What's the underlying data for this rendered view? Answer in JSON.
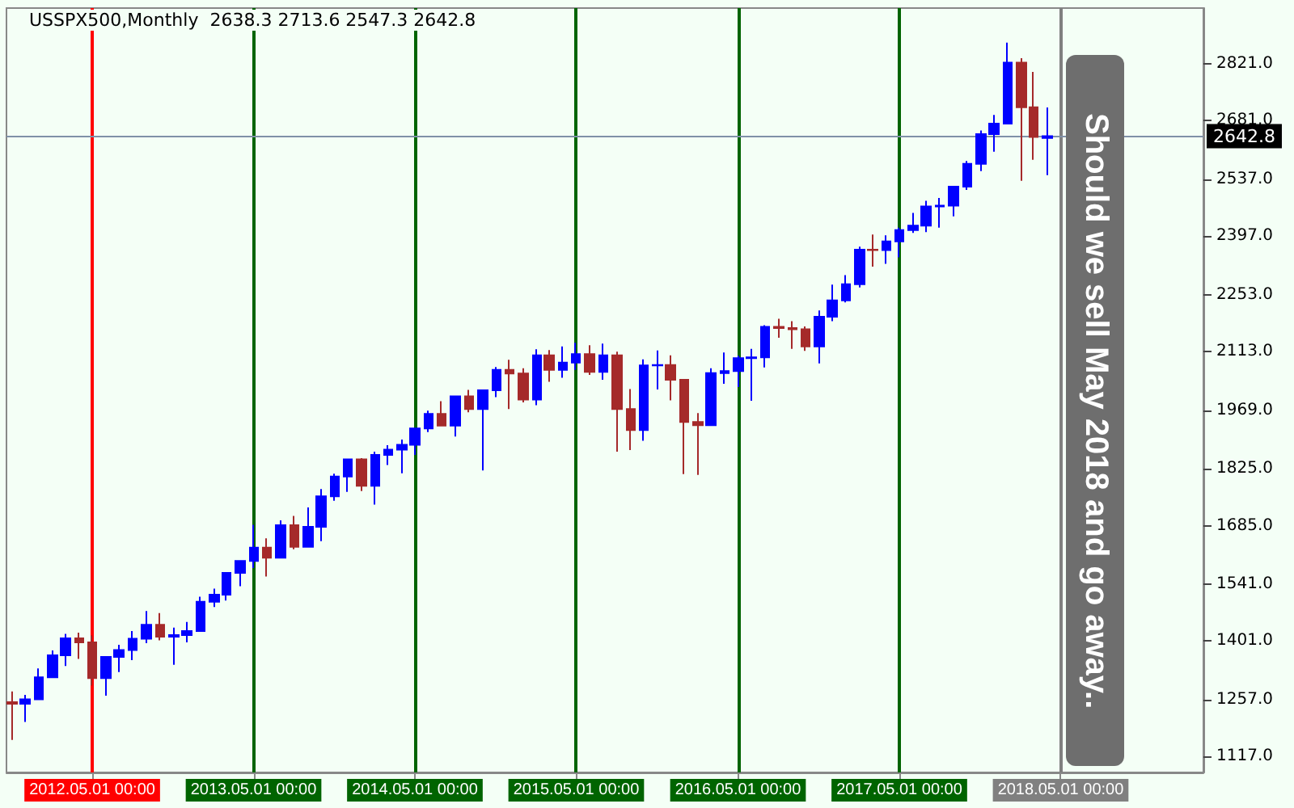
{
  "chart_data": {
    "type": "candlestick",
    "title": "USSPX500,Monthly  2638.3 2713.6 2547.3 2642.8",
    "x": [
      "2011-11",
      "2011-12",
      "2012-01",
      "2012-02",
      "2012-03",
      "2012-04",
      "2012-05",
      "2012-06",
      "2012-07",
      "2012-08",
      "2012-09",
      "2012-10",
      "2012-11",
      "2012-12",
      "2013-01",
      "2013-02",
      "2013-03",
      "2013-04",
      "2013-05",
      "2013-06",
      "2013-07",
      "2013-08",
      "2013-09",
      "2013-10",
      "2013-11",
      "2013-12",
      "2014-01",
      "2014-02",
      "2014-03",
      "2014-04",
      "2014-05",
      "2014-06",
      "2014-07",
      "2014-08",
      "2014-09",
      "2014-10",
      "2014-11",
      "2014-12",
      "2015-01",
      "2015-02",
      "2015-03",
      "2015-04",
      "2015-05",
      "2015-06",
      "2015-07",
      "2015-08",
      "2015-09",
      "2015-10",
      "2015-11",
      "2015-12",
      "2016-01",
      "2016-02",
      "2016-03",
      "2016-04",
      "2016-05",
      "2016-06",
      "2016-07",
      "2016-08",
      "2016-09",
      "2016-10",
      "2016-11",
      "2016-12",
      "2017-01",
      "2017-02",
      "2017-03",
      "2017-04",
      "2017-05",
      "2017-06",
      "2017-07",
      "2017-08",
      "2017-09",
      "2017-10",
      "2017-11",
      "2017-12",
      "2018-01",
      "2018-02",
      "2018-03",
      "2018-04"
    ],
    "ohlc": [
      [
        1251,
        1277,
        1158,
        1247
      ],
      [
        1247,
        1269,
        1202,
        1258
      ],
      [
        1258,
        1334,
        1258,
        1312
      ],
      [
        1312,
        1378,
        1312,
        1366
      ],
      [
        1366,
        1419,
        1340,
        1408
      ],
      [
        1408,
        1422,
        1357,
        1398
      ],
      [
        1398,
        1415,
        1292,
        1310
      ],
      [
        1310,
        1363,
        1267,
        1362
      ],
      [
        1362,
        1392,
        1325,
        1379
      ],
      [
        1379,
        1426,
        1354,
        1407
      ],
      [
        1407,
        1475,
        1396,
        1441
      ],
      [
        1441,
        1470,
        1403,
        1412
      ],
      [
        1412,
        1434,
        1343,
        1416
      ],
      [
        1416,
        1448,
        1398,
        1426
      ],
      [
        1426,
        1510,
        1426,
        1498
      ],
      [
        1498,
        1530,
        1485,
        1515
      ],
      [
        1515,
        1570,
        1501,
        1569
      ],
      [
        1569,
        1598,
        1536,
        1598
      ],
      [
        1598,
        1687,
        1581,
        1631
      ],
      [
        1631,
        1654,
        1560,
        1606
      ],
      [
        1606,
        1698,
        1604,
        1686
      ],
      [
        1686,
        1709,
        1627,
        1633
      ],
      [
        1633,
        1730,
        1633,
        1682
      ],
      [
        1682,
        1775,
        1647,
        1757
      ],
      [
        1757,
        1813,
        1746,
        1806
      ],
      [
        1806,
        1849,
        1768,
        1848
      ],
      [
        1848,
        1851,
        1770,
        1783
      ],
      [
        1783,
        1867,
        1737,
        1859
      ],
      [
        1859,
        1883,
        1834,
        1872
      ],
      [
        1872,
        1897,
        1814,
        1884
      ],
      [
        1884,
        1924,
        1859,
        1924
      ],
      [
        1924,
        1968,
        1915,
        1960
      ],
      [
        1960,
        1991,
        1930,
        1931
      ],
      [
        1931,
        2005,
        1904,
        2003
      ],
      [
        2003,
        2019,
        1964,
        1972
      ],
      [
        1972,
        2018,
        1821,
        2018
      ],
      [
        2018,
        2075,
        2001,
        2068
      ],
      [
        2068,
        2093,
        1972,
        2059
      ],
      [
        2059,
        2072,
        1988,
        1995
      ],
      [
        1995,
        2119,
        1981,
        2104
      ],
      [
        2104,
        2117,
        2039,
        2068
      ],
      [
        2068,
        2126,
        2049,
        2086
      ],
      [
        2086,
        2135,
        2068,
        2107
      ],
      [
        2107,
        2129,
        2056,
        2063
      ],
      [
        2063,
        2133,
        2044,
        2104
      ],
      [
        2104,
        2113,
        1867,
        1972
      ],
      [
        1972,
        2021,
        1871,
        1920
      ],
      [
        1920,
        2094,
        1894,
        2079
      ],
      [
        2079,
        2116,
        2020,
        2080
      ],
      [
        2080,
        2104,
        1993,
        2044
      ],
      [
        2044,
        2044,
        1812,
        1940
      ],
      [
        1940,
        1962,
        1810,
        1932
      ],
      [
        1932,
        2072,
        1932,
        2060
      ],
      [
        2060,
        2111,
        2034,
        2065
      ],
      [
        2065,
        2103,
        2026,
        2097
      ],
      [
        2097,
        2120,
        1992,
        2099
      ],
      [
        2099,
        2178,
        2074,
        2174
      ],
      [
        2174,
        2194,
        2147,
        2171
      ],
      [
        2171,
        2188,
        2120,
        2168
      ],
      [
        2168,
        2175,
        2115,
        2126
      ],
      [
        2126,
        2214,
        2084,
        2199
      ],
      [
        2199,
        2278,
        2188,
        2239
      ],
      [
        2239,
        2301,
        2234,
        2279
      ],
      [
        2279,
        2371,
        2271,
        2364
      ],
      [
        2364,
        2401,
        2322,
        2363
      ],
      [
        2363,
        2399,
        2329,
        2384
      ],
      [
        2384,
        2418,
        2345,
        2412
      ],
      [
        2412,
        2454,
        2405,
        2423
      ],
      [
        2423,
        2484,
        2407,
        2470
      ],
      [
        2470,
        2491,
        2418,
        2472
      ],
      [
        2472,
        2519,
        2446,
        2519
      ],
      [
        2519,
        2582,
        2511,
        2575
      ],
      [
        2575,
        2657,
        2557,
        2648
      ],
      [
        2648,
        2695,
        2605,
        2674
      ],
      [
        2674,
        2873,
        2673,
        2824
      ],
      [
        2824,
        2835,
        2533,
        2714
      ],
      [
        2714,
        2801,
        2585,
        2641
      ],
      [
        2638.3,
        2713.6,
        2547.3,
        2642.8
      ]
    ],
    "colors": [
      "#a52a2a",
      "#0000ff",
      "#0000ff",
      "#0000ff",
      "#0000ff",
      "#a52a2a",
      "#a52a2a",
      "#0000ff",
      "#0000ff",
      "#0000ff",
      "#0000ff",
      "#a52a2a",
      "#0000ff",
      "#0000ff",
      "#0000ff",
      "#0000ff",
      "#0000ff",
      "#0000ff",
      "#0000ff",
      "#a52a2a",
      "#0000ff",
      "#a52a2a",
      "#0000ff",
      "#0000ff",
      "#0000ff",
      "#0000ff",
      "#a52a2a",
      "#0000ff",
      "#0000ff",
      "#0000ff",
      "#0000ff",
      "#0000ff",
      "#a52a2a",
      "#0000ff",
      "#a52a2a",
      "#0000ff",
      "#0000ff",
      "#a52a2a",
      "#a52a2a",
      "#0000ff",
      "#a52a2a",
      "#0000ff",
      "#0000ff",
      "#a52a2a",
      "#0000ff",
      "#a52a2a",
      "#a52a2a",
      "#0000ff",
      "#0000ff",
      "#a52a2a",
      "#a52a2a",
      "#a52a2a",
      "#0000ff",
      "#0000ff",
      "#0000ff",
      "#0000ff",
      "#0000ff",
      "#a52a2a",
      "#a52a2a",
      "#a52a2a",
      "#0000ff",
      "#0000ff",
      "#0000ff",
      "#0000ff",
      "#a52a2a",
      "#0000ff",
      "#0000ff",
      "#0000ff",
      "#0000ff",
      "#0000ff",
      "#0000ff",
      "#0000ff",
      "#0000ff",
      "#0000ff",
      "#0000ff",
      "#a52a2a",
      "#a52a2a",
      "#0000ff"
    ],
    "xlim": [
      "2011-10-20",
      "2019-03-20"
    ],
    "ylim": [
      1078,
      2958
    ],
    "yticks": [
      {
        "value": 1117,
        "label": "1117.0"
      },
      {
        "value": 1257,
        "label": "1257.0"
      },
      {
        "value": 1401,
        "label": "1401.0"
      },
      {
        "value": 1541,
        "label": "1541.0"
      },
      {
        "value": 1685,
        "label": "1685.0"
      },
      {
        "value": 1825,
        "label": "1825.0"
      },
      {
        "value": 1969,
        "label": "1969.0"
      },
      {
        "value": 2113,
        "label": "2113.0"
      },
      {
        "value": 2253,
        "label": "2253.0"
      },
      {
        "value": 2397,
        "label": "2397.0"
      },
      {
        "value": 2537,
        "label": "2537.0"
      },
      {
        "value": 2681,
        "label": "2681.0"
      },
      {
        "value": 2821,
        "label": "2821.0"
      }
    ],
    "xticks": [
      {
        "value": "2012-05",
        "label": "2012.05.01 00:00"
      },
      {
        "value": "2013-05",
        "label": "2013.05.01 00:00"
      },
      {
        "value": "2014-05",
        "label": "2014.05.01 00:00"
      },
      {
        "value": "2015-05",
        "label": "2015.05.01 00:00"
      },
      {
        "value": "2016-05",
        "label": "2016.05.01 00:00"
      },
      {
        "value": "2017-05",
        "label": "2017.05.01 00:00"
      },
      {
        "value": "2018-05",
        "label": "2018.05.01 00:00"
      }
    ],
    "grid": false,
    "ref_lines": [
      {
        "axis": "x",
        "value": "2012-05",
        "color": "#ff0000"
      },
      {
        "axis": "x",
        "value": "2013-05",
        "color": "#006400"
      },
      {
        "axis": "x",
        "value": "2014-05",
        "color": "#006400"
      },
      {
        "axis": "x",
        "value": "2015-05",
        "color": "#006400"
      },
      {
        "axis": "x",
        "value": "2016-05",
        "color": "#006400"
      },
      {
        "axis": "x",
        "value": "2017-05",
        "color": "#006400"
      },
      {
        "axis": "x",
        "value": "2018-05",
        "color": "#808080"
      },
      {
        "axis": "y",
        "value": 2642.8,
        "label": "2642.8",
        "color": "#8090a8"
      }
    ],
    "annotations": [
      "Should we sell May 2018 and go away.."
    ]
  }
}
